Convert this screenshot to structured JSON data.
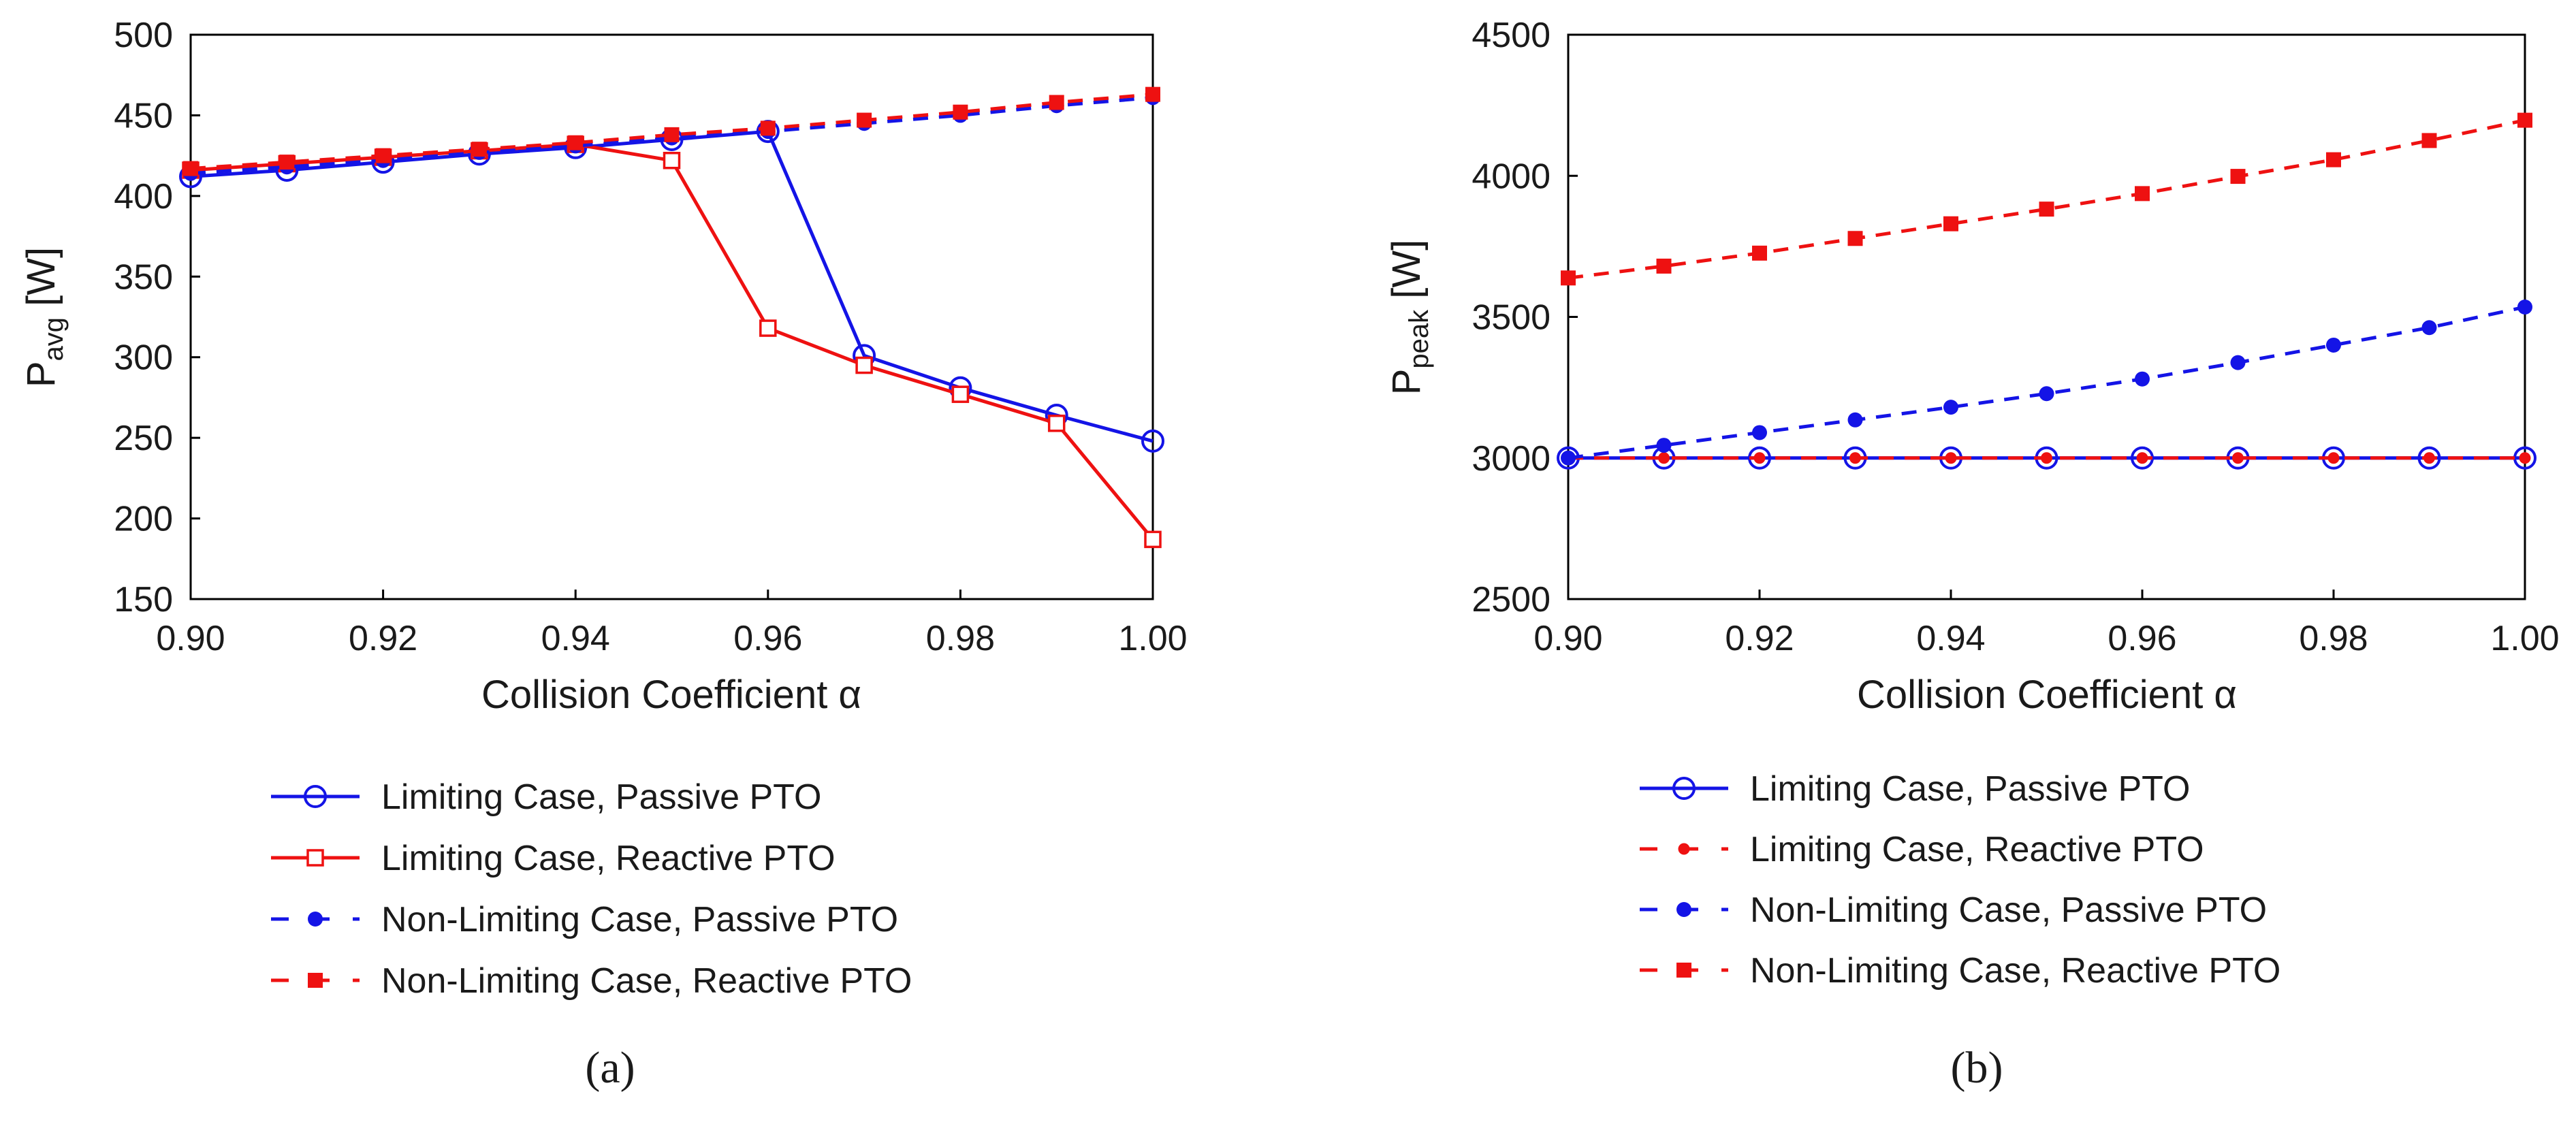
{
  "chart_data": [
    {
      "type": "line",
      "panel_label": "(a)",
      "title": "",
      "xlabel": "Collision Coefficient α",
      "ylabel_main": "P",
      "ylabel_sub": "avg",
      "ylabel_unit": " [W]",
      "xlim": [
        0.9,
        1.0
      ],
      "ylim": [
        150,
        500
      ],
      "xticks": [
        0.9,
        0.92,
        0.94,
        0.96,
        0.98,
        1.0
      ],
      "xtick_labels": [
        "0.90",
        "0.92",
        "0.94",
        "0.96",
        "0.98",
        "1.00"
      ],
      "yticks": [
        150,
        200,
        250,
        300,
        350,
        400,
        450,
        500
      ],
      "ytick_labels": [
        "150",
        "200",
        "250",
        "300",
        "350",
        "400",
        "450",
        "500"
      ],
      "grid": false,
      "legend_position": "below",
      "x": [
        0.9,
        0.91,
        0.92,
        0.93,
        0.94,
        0.95,
        0.96,
        0.97,
        0.98,
        0.99,
        1.0
      ],
      "series": [
        {
          "name": "Limiting Case, Passive PTO",
          "color": "#1414e6",
          "line": "solid",
          "marker": "open-circle",
          "values": [
            412,
            416,
            421,
            426,
            430,
            435,
            440,
            301,
            281,
            264,
            248
          ]
        },
        {
          "name": "Limiting Case, Reactive PTO",
          "color": "#ee1111",
          "line": "solid",
          "marker": "open-square",
          "values": [
            416,
            420,
            424,
            428,
            432,
            422,
            318,
            295,
            277,
            259,
            187
          ]
        },
        {
          "name": "Non-Limiting Case, Passive PTO",
          "color": "#1414e6",
          "line": "dashed",
          "marker": "filled-circle",
          "values": [
            414,
            418,
            422,
            427,
            431,
            436,
            440,
            445,
            450,
            456,
            461
          ]
        },
        {
          "name": "Non-Limiting Case, Reactive PTO",
          "color": "#ee1111",
          "line": "dashed",
          "marker": "filled-square",
          "values": [
            417,
            421,
            425,
            429,
            433,
            438,
            442,
            447,
            452,
            458,
            463
          ]
        }
      ]
    },
    {
      "type": "line",
      "panel_label": "(b)",
      "title": "",
      "xlabel": "Collision Coefficient α",
      "ylabel_main": "P",
      "ylabel_sub": "peak",
      "ylabel_unit": " [W]",
      "xlim": [
        0.9,
        1.0
      ],
      "ylim": [
        2500,
        4500
      ],
      "xticks": [
        0.9,
        0.92,
        0.94,
        0.96,
        0.98,
        1.0
      ],
      "xtick_labels": [
        "0.90",
        "0.92",
        "0.94",
        "0.96",
        "0.98",
        "1.00"
      ],
      "yticks": [
        2500,
        3000,
        3500,
        4000,
        4500
      ],
      "ytick_labels": [
        "2500",
        "3000",
        "3500",
        "4000",
        "4500"
      ],
      "grid": false,
      "legend_position": "below",
      "x": [
        0.9,
        0.91,
        0.92,
        0.93,
        0.94,
        0.95,
        0.96,
        0.97,
        0.98,
        0.99,
        1.0
      ],
      "series": [
        {
          "name": "Limiting Case, Passive PTO",
          "color": "#1414e6",
          "line": "solid",
          "marker": "open-circle",
          "values": [
            3000,
            3000,
            3000,
            3000,
            3000,
            3000,
            3000,
            3000,
            3000,
            3000,
            3000
          ]
        },
        {
          "name": "Limiting Case, Reactive PTO",
          "color": "#ee1111",
          "line": "dashed",
          "marker": "filled-circle-small",
          "values": [
            3000,
            3000,
            3000,
            3000,
            3000,
            3000,
            3000,
            3000,
            3000,
            3000,
            3000
          ]
        },
        {
          "name": "Non-Limiting Case, Passive PTO",
          "color": "#1414e6",
          "line": "dashed",
          "marker": "filled-circle",
          "values": [
            3000,
            3045,
            3090,
            3135,
            3180,
            3228,
            3280,
            3338,
            3400,
            3462,
            3535
          ]
        },
        {
          "name": "Non-Limiting Case, Reactive PTO",
          "color": "#ee1111",
          "line": "dashed",
          "marker": "filled-square",
          "values": [
            3638,
            3680,
            3726,
            3778,
            3830,
            3882,
            3937,
            3998,
            4057,
            4125,
            4197
          ]
        }
      ]
    }
  ]
}
